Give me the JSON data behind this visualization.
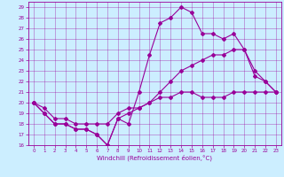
{
  "background_color": "#cceeff",
  "line_color": "#990099",
  "xlabel": "Windchill (Refroidissement éolien,°C)",
  "xlim": [
    -0.5,
    23.5
  ],
  "ylim": [
    16,
    29.5
  ],
  "xticks": [
    0,
    1,
    2,
    3,
    4,
    5,
    6,
    7,
    8,
    9,
    10,
    11,
    12,
    13,
    14,
    15,
    16,
    17,
    18,
    19,
    20,
    21,
    22,
    23
  ],
  "yticks": [
    16,
    17,
    18,
    19,
    20,
    21,
    22,
    23,
    24,
    25,
    26,
    27,
    28,
    29
  ],
  "line1_x": [
    0,
    1,
    2,
    3,
    4,
    5,
    6,
    7,
    8,
    9,
    10,
    11,
    12,
    13,
    14,
    15,
    16,
    17,
    18,
    19,
    20,
    21,
    22,
    23
  ],
  "line1_y": [
    20,
    19,
    18,
    18,
    17.5,
    17.5,
    17,
    16,
    18.5,
    18,
    21,
    24.5,
    27.5,
    28,
    29,
    28.5,
    26.5,
    26.5,
    26,
    26.5,
    25,
    23,
    22,
    21
  ],
  "line2_x": [
    0,
    1,
    2,
    3,
    4,
    5,
    6,
    7,
    8,
    9,
    10,
    11,
    12,
    13,
    14,
    15,
    16,
    17,
    18,
    19,
    20,
    21,
    22,
    23
  ],
  "line2_y": [
    20,
    19,
    18,
    18,
    17.5,
    17.5,
    17,
    16,
    18.5,
    19,
    19.5,
    20,
    21,
    22,
    23,
    23.5,
    24,
    24.5,
    24.5,
    25,
    25,
    22.5,
    22,
    21
  ],
  "line3_x": [
    0,
    1,
    2,
    3,
    4,
    5,
    6,
    7,
    8,
    9,
    10,
    11,
    12,
    13,
    14,
    15,
    16,
    17,
    18,
    19,
    20,
    21,
    22,
    23
  ],
  "line3_y": [
    20,
    19.5,
    18.5,
    18.5,
    18,
    18,
    18,
    18,
    19,
    19.5,
    19.5,
    20,
    20.5,
    20.5,
    21,
    21,
    20.5,
    20.5,
    20.5,
    21,
    21,
    21,
    21,
    21
  ],
  "marker": "D",
  "markersize": 2.0,
  "linewidth": 0.8,
  "tick_labelsize": 4.0,
  "xlabel_fontsize": 5.0
}
